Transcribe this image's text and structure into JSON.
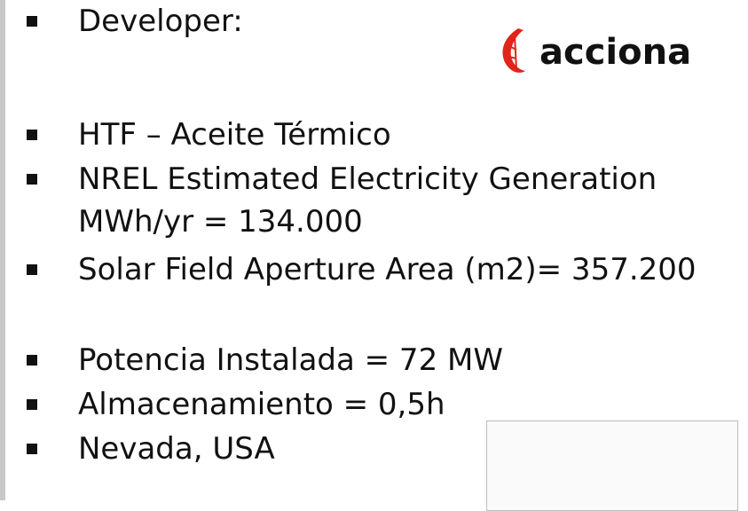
{
  "bullets": [
    "Developer:",
    "HTF – Aceite Térmico",
    "NREL Estimated Electricity Generation MWh/yr = 134.000",
    "Solar Field Aperture Area (m2)= 357.200",
    "Potencia Instalada = 72 MW",
    "Almacenamiento = 0,5h",
    "Nevada, USA"
  ],
  "logo": {
    "text": "acciona"
  }
}
